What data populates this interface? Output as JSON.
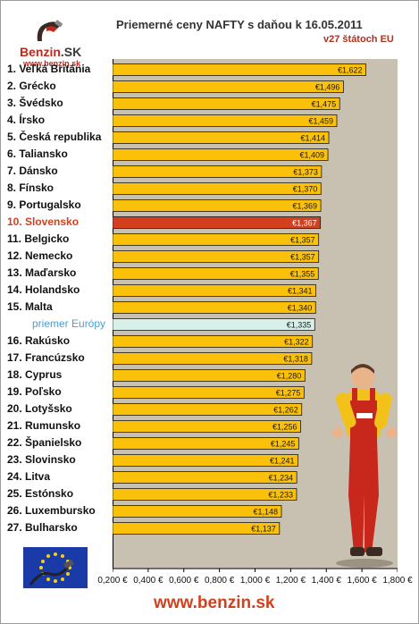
{
  "branding": {
    "logo_name": "Benzin",
    "logo_suffix": ".SK",
    "logo_url": "www.benzin.sk",
    "footer_url": "www.benzin.sk"
  },
  "colors": {
    "bar": "#fbc00a",
    "bar_home": "#d3401e",
    "bar_avg": "#d8f0ea",
    "plot_bg": "#c8c0b1",
    "accent_red": "#d3401e",
    "avg_label": "#4aa0d0"
  },
  "chart_data": {
    "type": "bar",
    "orientation": "horizontal",
    "title": "Priemerné ceny NAFTY s daňou k 16.05.2011",
    "subtitle": "v27 štátoch EU",
    "categories": [
      "1. Veľká Británia",
      "2. Grécko",
      "3. Švédsko",
      "4. Írsko",
      "5. Česká republika",
      "6. Taliansko",
      "7. Dánsko",
      "8. Fínsko",
      "9. Portugalsko",
      "10. Slovensko",
      "11. Belgicko",
      "12. Nemecko",
      "13. Maďarsko",
      "14. Holandsko",
      "15. Malta",
      "priemer Európy",
      "16. Rakúsko",
      "17. Francúzsko",
      "18. Cyprus",
      "19. Poľsko",
      "20. Lotyšsko",
      "21. Rumunsko",
      "22. Španielsko",
      "23. Slovinsko",
      "24. Litva",
      "25. Estónsko",
      "26. Luxembursko",
      "27. Bulharsko"
    ],
    "values": [
      1.622,
      1.496,
      1.475,
      1.459,
      1.414,
      1.409,
      1.373,
      1.37,
      1.369,
      1.367,
      1.357,
      1.357,
      1.355,
      1.341,
      1.34,
      1.335,
      1.322,
      1.318,
      1.28,
      1.275,
      1.262,
      1.256,
      1.245,
      1.241,
      1.234,
      1.233,
      1.148,
      1.137
    ],
    "value_labels": [
      "€1,622",
      "€1,496",
      "€1,475",
      "€1,459",
      "€1,414",
      "€1,409",
      "€1,373",
      "€1,370",
      "€1,369",
      "€1,367",
      "€1,357",
      "€1,357",
      "€1,355",
      "€1,341",
      "€1,340",
      "€1,335",
      "€1,322",
      "€1,318",
      "€1,280",
      "€1,275",
      "€1,262",
      "€1,256",
      "€1,245",
      "€1,241",
      "€1,234",
      "€1,233",
      "€1,148",
      "€1,137"
    ],
    "highlight_index": 9,
    "average_index": 15,
    "xlim": [
      0.2,
      1.8
    ],
    "x_ticks": [
      0.2,
      0.4,
      0.6,
      0.8,
      1.0,
      1.2,
      1.4,
      1.6,
      1.8
    ],
    "x_tick_labels": [
      "0,200 €",
      "0,400 €",
      "0,600 €",
      "0,800 €",
      "1,000 €",
      "1,200 €",
      "1,400 €",
      "1,600 €",
      "1,800 €"
    ],
    "grid": false,
    "legend": "none"
  }
}
